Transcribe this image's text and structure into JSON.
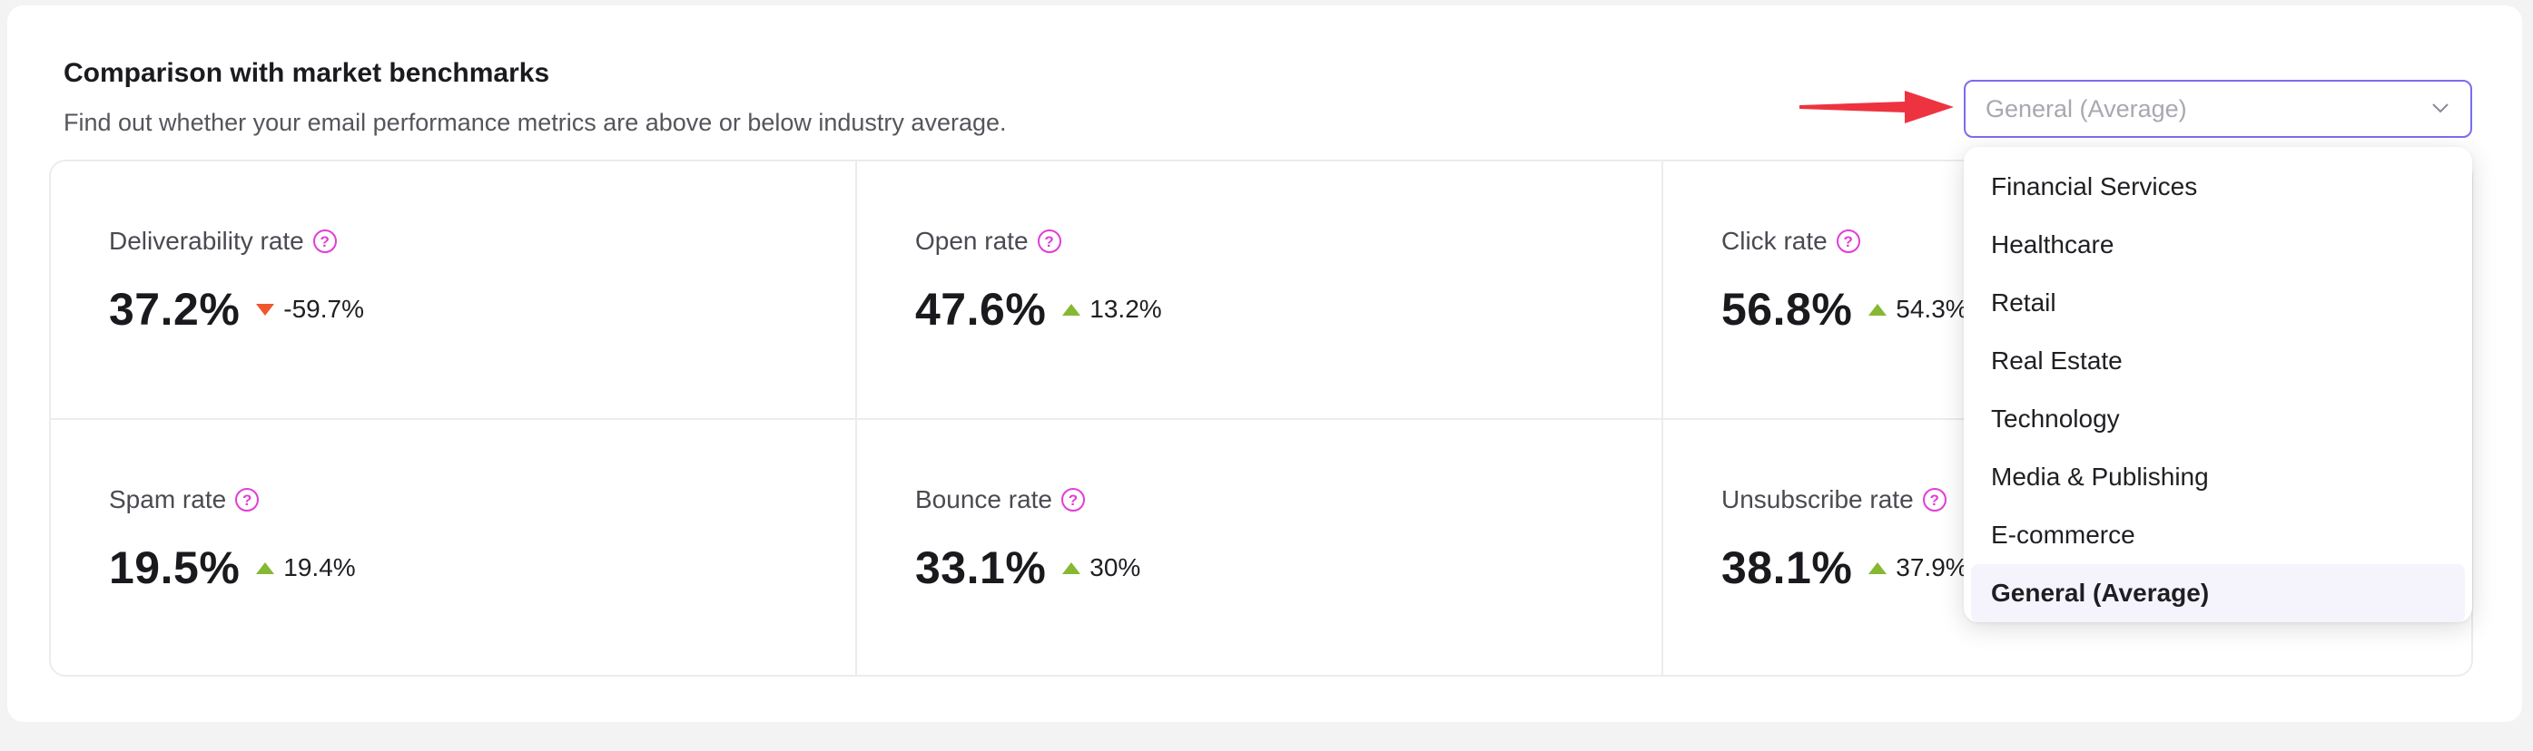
{
  "header": {
    "title": "Comparison with market benchmarks",
    "subtitle": "Find out whether your email performance metrics are above or below industry average."
  },
  "metrics": [
    {
      "label": "Deliverability rate",
      "value": "37.2%",
      "delta": "-59.7%",
      "direction": "down"
    },
    {
      "label": "Open rate",
      "value": "47.6%",
      "delta": "13.2%",
      "direction": "up"
    },
    {
      "label": "Click rate",
      "value": "56.8%",
      "delta": "54.3%",
      "direction": "up"
    },
    {
      "label": "Spam rate",
      "value": "19.5%",
      "delta": "19.4%",
      "direction": "up"
    },
    {
      "label": "Bounce rate",
      "value": "33.1%",
      "delta": "30%",
      "direction": "up"
    },
    {
      "label": "Unsubscribe rate",
      "value": "38.1%",
      "delta": "37.9%",
      "direction": "up"
    }
  ],
  "industry_select": {
    "value": "General (Average)",
    "icon": "chevron-down-icon",
    "options": [
      "Financial Services",
      "Healthcare",
      "Retail",
      "Real Estate",
      "Technology",
      "Media & Publishing",
      "E-commerce",
      "General (Average)"
    ],
    "selected_index": 7
  },
  "colors": {
    "accent": "#7b6cf0",
    "up": "#86b833",
    "down": "#f0552c",
    "help": "#e23dd6",
    "annotation_arrow": "#ee3340"
  },
  "icons": {
    "help": "help-circle-icon",
    "annotation": "annotation-arrow-icon"
  }
}
